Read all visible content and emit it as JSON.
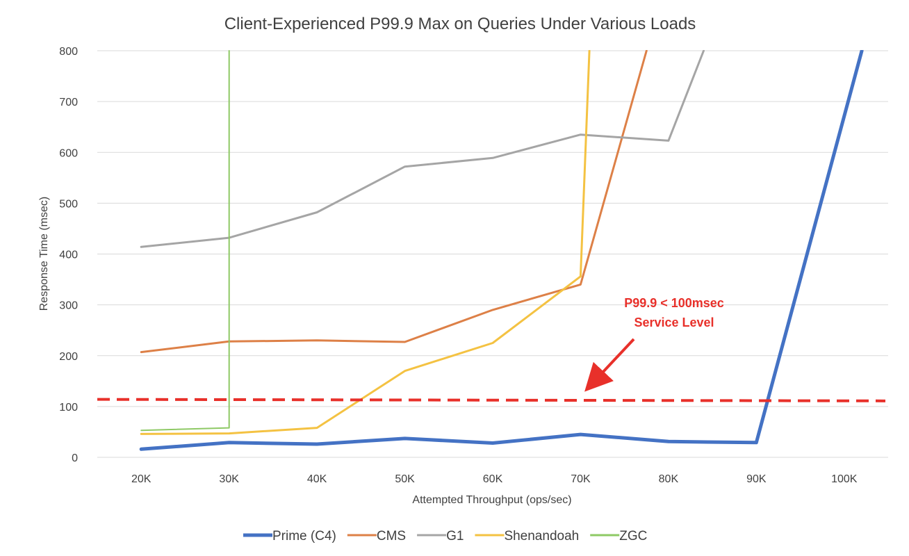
{
  "chart_data": {
    "type": "line",
    "title": "Client-Experienced P99.9 Max on Queries Under Various Loads",
    "xlabel": "Attempted Throughput (ops/sec)",
    "ylabel": "Response Time (msec)",
    "categories": [
      "20K",
      "30K",
      "40K",
      "50K",
      "60K",
      "70K",
      "80K",
      "90K",
      "100K"
    ],
    "ylim": [
      0,
      800
    ],
    "yticks": [
      "0",
      "100",
      "200",
      "300",
      "400",
      "500",
      "600",
      "700",
      "800"
    ],
    "grid": true,
    "legend_position": "bottom",
    "series": [
      {
        "name": "Prime (C4)",
        "color": "#4472c4",
        "width": 5,
        "points": [
          [
            0,
            16
          ],
          [
            1,
            29
          ],
          [
            2,
            26
          ],
          [
            3,
            37
          ],
          [
            4,
            28
          ],
          [
            5,
            45
          ],
          [
            6,
            31
          ],
          [
            7,
            29
          ],
          [
            8.2,
            800
          ]
        ]
      },
      {
        "name": "CMS",
        "color": "#dd8047",
        "width": 3,
        "points": [
          [
            0,
            207
          ],
          [
            1,
            228
          ],
          [
            2,
            230
          ],
          [
            3,
            227
          ],
          [
            4,
            290
          ],
          [
            5,
            340
          ],
          [
            5.75,
            800
          ]
        ]
      },
      {
        "name": "G1",
        "color": "#a5a5a5",
        "width": 3,
        "points": [
          [
            0,
            414
          ],
          [
            1,
            432
          ],
          [
            2,
            482
          ],
          [
            3,
            572
          ],
          [
            4,
            589
          ],
          [
            5,
            635
          ],
          [
            6,
            623
          ],
          [
            6.4,
            800
          ]
        ]
      },
      {
        "name": "Shenandoah",
        "color": "#f4c242",
        "width": 3,
        "points": [
          [
            0,
            46
          ],
          [
            1,
            47
          ],
          [
            2,
            58
          ],
          [
            3,
            170
          ],
          [
            4,
            225
          ],
          [
            5,
            356
          ],
          [
            5.1,
            800
          ]
        ]
      },
      {
        "name": "ZGC",
        "color": "#8ec965",
        "width": 2,
        "points": [
          [
            0,
            53
          ],
          [
            1,
            58
          ],
          [
            1,
            800
          ]
        ]
      }
    ],
    "sla_line": {
      "y_start": 114,
      "y_end": 111,
      "color": "#e8302a"
    },
    "annotation": {
      "lines": [
        "P99.9 < 100msec",
        "Service Level"
      ],
      "color": "#e8302a"
    }
  }
}
